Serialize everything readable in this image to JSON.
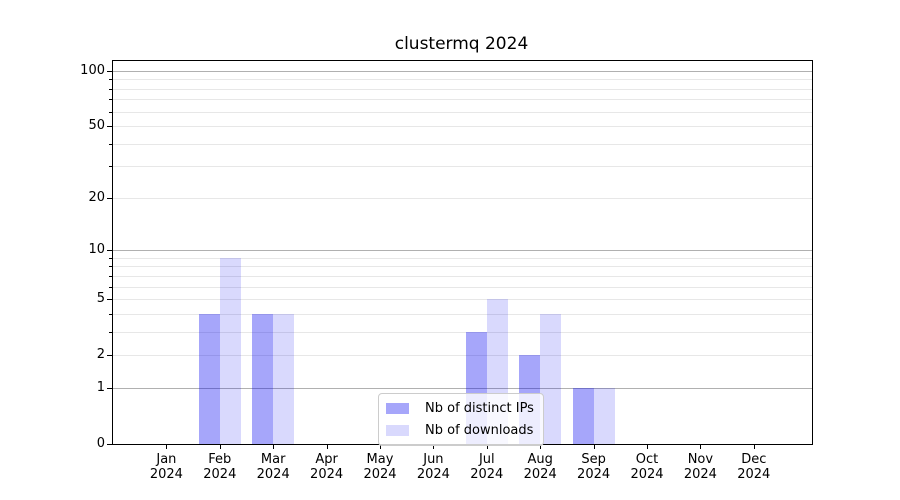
{
  "chart_data": {
    "type": "bar",
    "title": "clustermq 2024",
    "categories": [
      "Jan",
      "Feb",
      "Mar",
      "Apr",
      "May",
      "Jun",
      "Jul",
      "Aug",
      "Sep",
      "Oct",
      "Nov",
      "Dec"
    ],
    "x_year": "2024",
    "series": [
      {
        "name": "Nb of distinct IPs",
        "color": "#a6a6fa",
        "fill": "rgba(0,0,240,0.35)",
        "values": [
          0,
          4,
          4,
          0,
          0,
          0,
          3,
          2,
          1,
          0,
          0,
          0
        ]
      },
      {
        "name": "Nb of downloads",
        "color": "#d9d9fd",
        "fill": "rgba(0,0,240,0.15)",
        "values": [
          0,
          9,
          4,
          0,
          0,
          0,
          5,
          4,
          1,
          0,
          0,
          0
        ]
      }
    ],
    "y_axis": {
      "scale": "log1p",
      "tick_labels": [
        0,
        1,
        2,
        5,
        10,
        20,
        50,
        100
      ],
      "major_gridlines": [
        1,
        10,
        100
      ],
      "minor_gridlines": [
        2,
        3,
        4,
        5,
        6,
        7,
        8,
        9,
        20,
        30,
        40,
        50,
        60,
        70,
        80,
        90
      ],
      "ylim": [
        0,
        110
      ]
    },
    "grid": "horizontal",
    "legend_position": "bottom-center"
  },
  "colors": {
    "grid_major": "#b0b0b0",
    "grid_minor": "#e7e7e7",
    "spine": "#000000",
    "text": "#000000",
    "background": "#ffffff"
  }
}
